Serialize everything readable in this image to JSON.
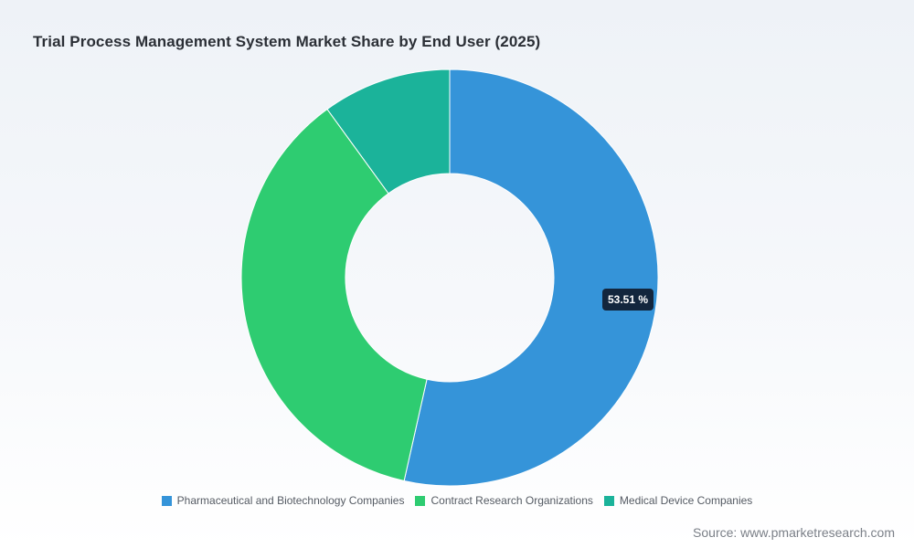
{
  "chart_data": {
    "type": "pie",
    "variant": "donut",
    "title": "Trial Process Management System Market Share by End User (2025)",
    "categories": [
      "Pharmaceutical and Biotechnology Companies",
      "Contract Research Organizations",
      "Medical Device Companies"
    ],
    "values": [
      53.51,
      36.49,
      10.0
    ],
    "colors": [
      "#3594d9",
      "#2ecc71",
      "#1bb39a"
    ],
    "data_labels": [
      {
        "category": "Pharmaceutical and Biotechnology Companies",
        "text": "53.51 %"
      }
    ],
    "legend_position": "bottom"
  },
  "source": "Source: www.pmarketresearch.com"
}
